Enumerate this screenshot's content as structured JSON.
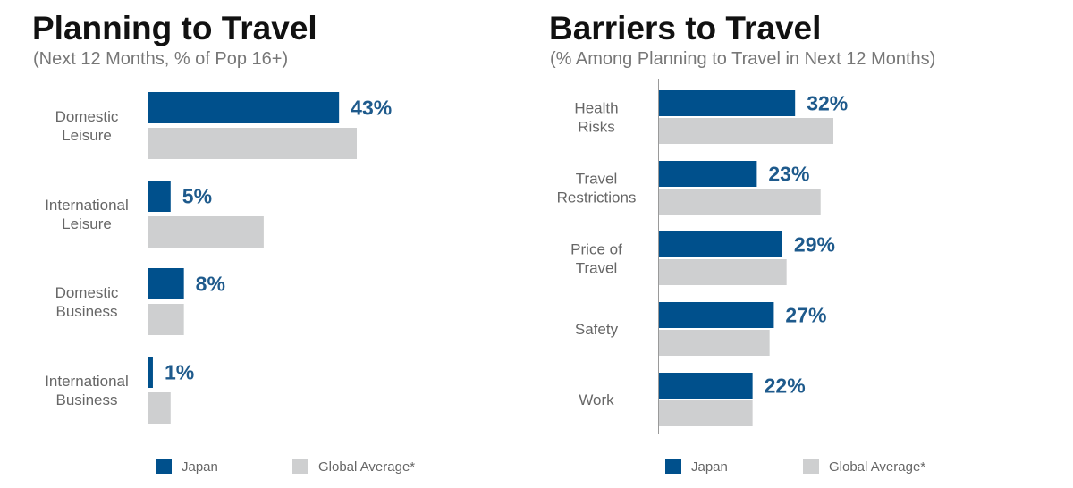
{
  "chart_data": [
    {
      "type": "bar",
      "orientation": "horizontal",
      "title": "Planning to Travel",
      "subtitle": "(Next 12 Months, % of Pop 16+)",
      "categories": [
        [
          "Domestic",
          "Leisure"
        ],
        [
          "International",
          "Leisure"
        ],
        [
          "Domestic",
          "Business"
        ],
        [
          "International",
          "Business"
        ]
      ],
      "series": [
        {
          "name": "Japan",
          "values": [
            43,
            5,
            8,
            1
          ],
          "labels": [
            "43%",
            "5%",
            "8%",
            "1%"
          ],
          "color": "#00508c"
        },
        {
          "name": "Global Average*",
          "values": [
            47,
            26,
            8,
            5
          ],
          "color": "#cecfd0"
        }
      ],
      "xlim": [
        0,
        50
      ],
      "legend": "bottom"
    },
    {
      "type": "bar",
      "orientation": "horizontal",
      "title": "Barriers to Travel",
      "subtitle": "(% Among Planning to Travel in Next 12 Months)",
      "categories": [
        [
          "Health",
          "Risks"
        ],
        [
          "Travel",
          "Restrictions"
        ],
        [
          "Price of",
          "Travel"
        ],
        [
          "Safety"
        ],
        [
          "Work"
        ]
      ],
      "series": [
        {
          "name": "Japan",
          "values": [
            32,
            23,
            29,
            27,
            22
          ],
          "labels": [
            "32%",
            "23%",
            "29%",
            "27%",
            "22%"
          ],
          "color": "#00508c"
        },
        {
          "name": "Global Average*",
          "values": [
            41,
            38,
            30,
            26,
            22
          ],
          "color": "#cecfd0"
        }
      ],
      "xlim": [
        0,
        50
      ],
      "legend": "bottom"
    }
  ]
}
